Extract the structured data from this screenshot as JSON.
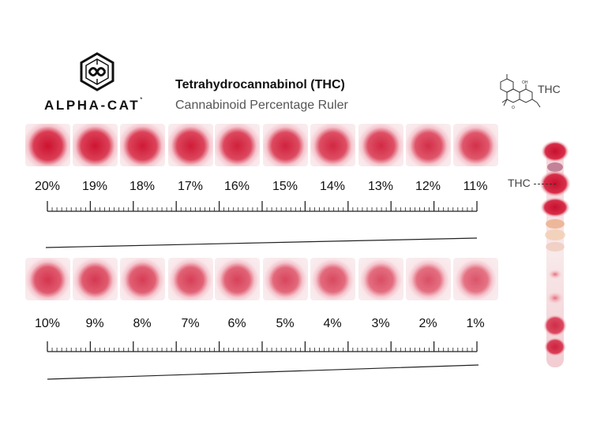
{
  "brand": {
    "name": "ALPHA-CAT",
    "trademark": "*",
    "icon": "alpha-cat-logo-icon"
  },
  "title": "Tetrahydrocannabinol (THC)",
  "subtitle": "Cannabinoid Percentage Ruler",
  "thc_label": "THC",
  "thc_plate_label": "THC",
  "colors": {
    "spot": "#d81e3c",
    "text": "#111111",
    "subtitle": "#555555"
  },
  "row1": [
    {
      "label": "20%",
      "value": 20
    },
    {
      "label": "19%",
      "value": 19
    },
    {
      "label": "18%",
      "value": 18
    },
    {
      "label": "17%",
      "value": 17
    },
    {
      "label": "16%",
      "value": 16
    },
    {
      "label": "15%",
      "value": 15
    },
    {
      "label": "14%",
      "value": 14
    },
    {
      "label": "13%",
      "value": 13
    },
    {
      "label": "12%",
      "value": 12
    },
    {
      "label": "11%",
      "value": 11
    }
  ],
  "row2": [
    {
      "label": "10%",
      "value": 10
    },
    {
      "label": "9%",
      "value": 9
    },
    {
      "label": "8%",
      "value": 8
    },
    {
      "label": "7%",
      "value": 7
    },
    {
      "label": "6%",
      "value": 6
    },
    {
      "label": "5%",
      "value": 5
    },
    {
      "label": "4%",
      "value": 4
    },
    {
      "label": "3%",
      "value": 3
    },
    {
      "label": "2%",
      "value": 2
    },
    {
      "label": "1%",
      "value": 1
    }
  ]
}
